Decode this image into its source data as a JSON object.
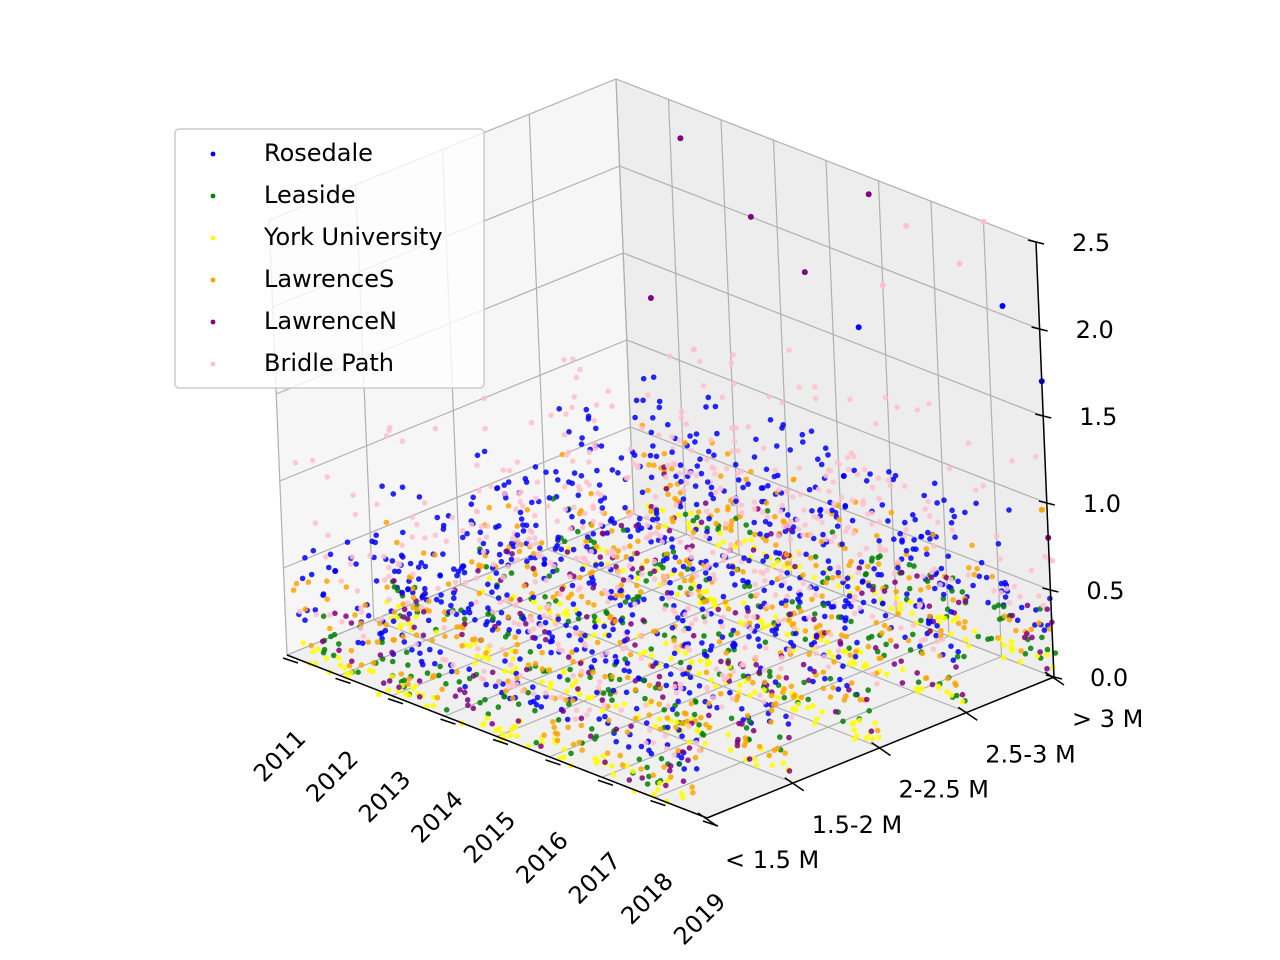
{
  "chart_data": {
    "type": "scatter",
    "projection": "3d",
    "x_ticks": [
      "2011",
      "2012",
      "2013",
      "2014",
      "2015",
      "2016",
      "2017",
      "2018",
      "2019"
    ],
    "y_ticks": [
      "< 1.5 M",
      "1.5-2 M",
      "2-2.5 M",
      "2.5-3 M",
      "> 3 M"
    ],
    "z_ticks": [
      "0.0",
      "0.5",
      "1.0",
      "1.5",
      "2.0",
      "2.5"
    ],
    "xlim": [
      2011,
      2019
    ],
    "ylim": [
      0,
      4
    ],
    "zlim": [
      0,
      2.5
    ],
    "x_range_of_points": [
      2011.2,
      2019.0
    ],
    "grid": true,
    "legend_position": "upper-left",
    "series": [
      {
        "name": "Rosedale",
        "color": "#0000ff",
        "typical_range": [
          0.25,
          0.9
        ],
        "outliers": [
          [
            2015.5,
            4,
            1.6
          ],
          [
            2016.8,
            3,
            1.1
          ],
          [
            2018.3,
            4,
            2.05
          ],
          [
            2019.0,
            4,
            1.7
          ],
          [
            2012.0,
            0,
            0.6
          ]
        ]
      },
      {
        "name": "Leaside",
        "color": "#008000",
        "typical_range": [
          0.05,
          0.35
        ],
        "outliers": []
      },
      {
        "name": "York University",
        "color": "#ffff00",
        "typical_range": [
          0.0,
          0.12
        ],
        "outliers": []
      },
      {
        "name": "LawrenceS",
        "color": "#ffa500",
        "typical_range": [
          0.1,
          0.6
        ],
        "outliers": [
          [
            2018.9,
            4,
            0.95
          ]
        ]
      },
      {
        "name": "LawrenceN",
        "color": "#800080",
        "typical_range": [
          0.05,
          0.4
        ],
        "outliers": [
          [
            2012.2,
            4,
            2.3
          ],
          [
            2013.5,
            4,
            2.0
          ],
          [
            2014.5,
            4,
            1.8
          ],
          [
            2011.5,
            4,
            1.3
          ],
          [
            2015.8,
            4,
            2.4
          ],
          [
            2019.0,
            4,
            0.8
          ]
        ]
      },
      {
        "name": "Bridle Path",
        "color": "#ffc0cb",
        "typical_range": [
          0.3,
          1.3
        ],
        "outliers": [
          [
            2016.5,
            4,
            2.3
          ],
          [
            2018.0,
            4,
            2.5
          ],
          [
            2017.5,
            4,
            2.2
          ],
          [
            2016.0,
            4,
            1.9
          ],
          [
            2014.0,
            3,
            1.5
          ]
        ]
      }
    ]
  }
}
